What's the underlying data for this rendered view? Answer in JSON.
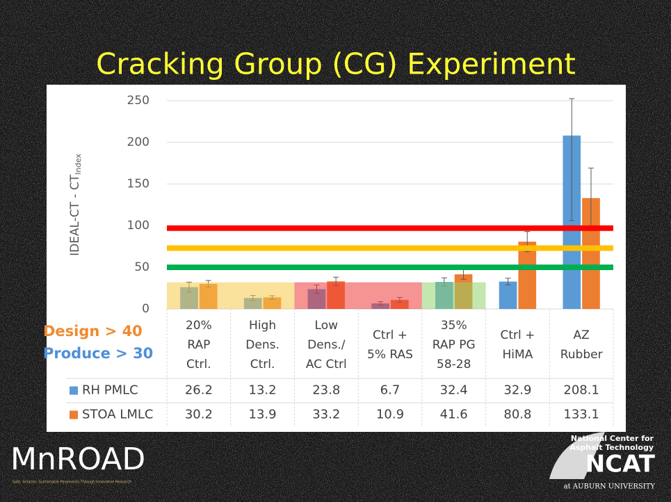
{
  "chart_data": {
    "type": "bar",
    "title": "Cracking Group (CG) Experiment",
    "y_label": "IDEAL-CT - CT",
    "y_label_subscript": "Index",
    "categories": [
      [
        "20%",
        "RAP",
        "Ctrl."
      ],
      [
        "High",
        "Dens.",
        "Ctrl."
      ],
      [
        "Low",
        "Dens./",
        "AC Ctrl"
      ],
      [
        "Ctrl +",
        "5% RAS"
      ],
      [
        "35%",
        "RAP PG",
        "58-28"
      ],
      [
        "Ctrl +",
        "HiMA"
      ],
      [
        "AZ",
        "Rubber"
      ]
    ],
    "series": [
      {
        "name": "RH PMLC",
        "color": "#5b9bd5",
        "values": [
          26.2,
          13.2,
          23.8,
          6.7,
          32.4,
          32.9,
          208.1
        ],
        "errors": [
          6,
          3,
          5,
          2,
          5,
          4,
          102
        ]
      },
      {
        "name": "STOA LMLC",
        "color": "#ed7d31",
        "values": [
          30.2,
          13.9,
          33.2,
          10.9,
          41.6,
          80.8,
          133.1
        ],
        "errors": [
          4,
          2,
          5,
          3,
          6,
          12,
          36
        ]
      }
    ],
    "ylim": [
      0,
      250
    ],
    "yticks": [
      0,
      50,
      100,
      150,
      200,
      250
    ],
    "grid": true,
    "reference_lines": [
      {
        "value": 97,
        "color": "#ff0000"
      },
      {
        "value": 73,
        "color": "#ffc000"
      },
      {
        "value": 50,
        "color": "#00b050"
      }
    ],
    "shading": {
      "tops": [
        32,
        32,
        32,
        32,
        32,
        null,
        null
      ],
      "colors": [
        "#f6c84a",
        "#f6c84a",
        "#ee3a3a",
        "#ee3a3a",
        "#92d36e",
        null,
        null
      ]
    },
    "annotations": [
      {
        "text": "Design > 40",
        "color": "#f08a30"
      },
      {
        "text": "Produce > 30",
        "color": "#4f8fd8"
      }
    ],
    "logos": {
      "mnroad": "MnROAD",
      "mnroad_tagline": "Safe, Smarter, Sustainable Pavements Through Innovative Research",
      "ncat_top": "National Center for",
      "ncat_middle": "Asphalt Technology",
      "ncat": "NCAT",
      "ncat_bottom": "at AUBURN UNIVERSITY"
    }
  }
}
